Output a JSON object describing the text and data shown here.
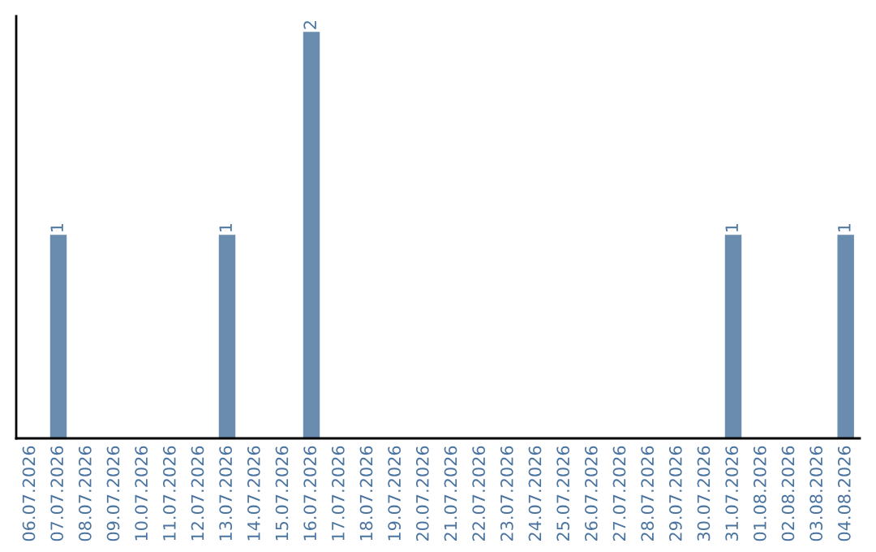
{
  "chart_data": {
    "type": "bar",
    "categories": [
      "06.07.2026",
      "07.07.2026",
      "08.07.2026",
      "09.07.2026",
      "10.07.2026",
      "11.07.2026",
      "12.07.2026",
      "13.07.2026",
      "14.07.2026",
      "15.07.2026",
      "16.07.2026",
      "17.07.2026",
      "18.07.2026",
      "19.07.2026",
      "20.07.2026",
      "21.07.2026",
      "22.07.2026",
      "23.07.2026",
      "24.07.2026",
      "25.07.2026",
      "26.07.2026",
      "27.07.2026",
      "28.07.2026",
      "29.07.2026",
      "30.07.2026",
      "31.07.2026",
      "01.08.2026",
      "02.08.2026",
      "03.08.2026",
      "04.08.2026"
    ],
    "values": [
      0,
      1,
      0,
      0,
      0,
      0,
      0,
      1,
      0,
      0,
      2,
      0,
      0,
      0,
      0,
      0,
      0,
      0,
      0,
      0,
      0,
      0,
      0,
      0,
      0,
      1,
      0,
      0,
      0,
      1
    ],
    "value_labels": [
      null,
      "1",
      null,
      null,
      null,
      null,
      null,
      "1",
      null,
      null,
      "2",
      null,
      null,
      null,
      null,
      null,
      null,
      null,
      null,
      null,
      null,
      null,
      null,
      null,
      null,
      "1",
      null,
      null,
      null,
      "1"
    ],
    "color": "#6a8caf",
    "ylim": [
      0,
      2.08
    ],
    "tick_labels": "x",
    "grid": false,
    "legend": false
  }
}
